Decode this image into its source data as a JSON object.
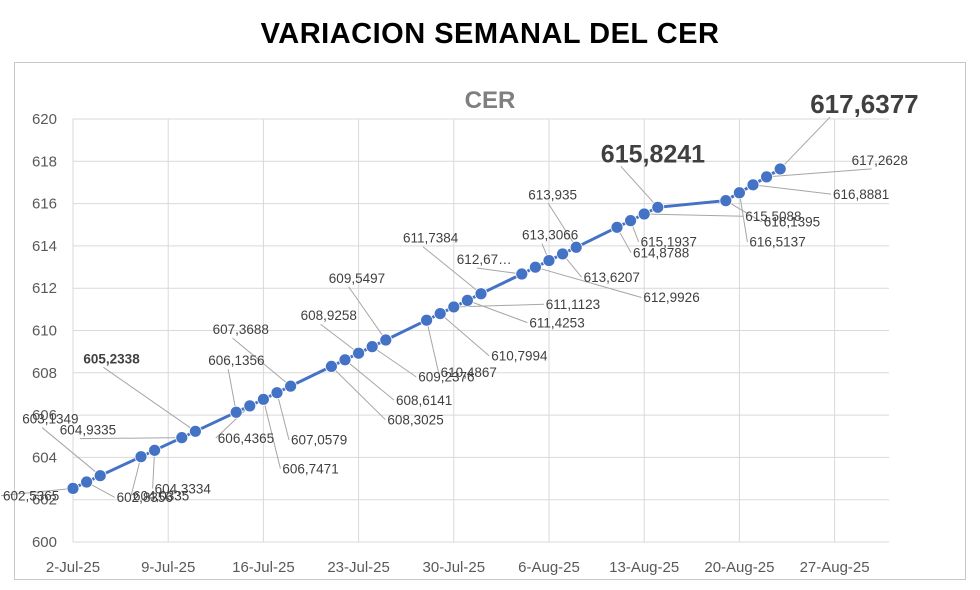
{
  "page": {
    "title": "VARIACION SEMANAL DEL CER"
  },
  "colors": {
    "series": "#4472c4",
    "grid": "#d9d9d9",
    "leader": "#a6a6a6",
    "text": "#404040"
  },
  "chart_data": {
    "type": "line",
    "title": "CER",
    "xlabel": "",
    "ylabel": "",
    "ylim": [
      600,
      620
    ],
    "yticks": [
      600,
      602,
      604,
      606,
      608,
      610,
      612,
      614,
      616,
      618,
      620
    ],
    "ytick_labels": [
      "600",
      "602",
      "604",
      "606",
      "608",
      "610",
      "612",
      "614",
      "616",
      "618",
      "620"
    ],
    "xlim": [
      "2025-07-02",
      "2025-08-31"
    ],
    "xticks": [
      "2025-07-02",
      "2025-07-09",
      "2025-07-16",
      "2025-07-23",
      "2025-07-30",
      "2025-08-06",
      "2025-08-13",
      "2025-08-20",
      "2025-08-27"
    ],
    "xtick_labels": [
      "2-Jul-25",
      "9-Jul-25",
      "16-Jul-25",
      "23-Jul-25",
      "30-Jul-25",
      "6-Aug-25",
      "13-Aug-25",
      "20-Aug-25",
      "27-Aug-25"
    ],
    "grid": true,
    "legend": "none",
    "series": [
      {
        "points": [
          {
            "x": "2025-07-02",
            "y": 602.5365,
            "label": "602,5365"
          },
          {
            "x": "2025-07-03",
            "y": 602.8356,
            "label": "602,8356"
          },
          {
            "x": "2025-07-04",
            "y": 603.1349,
            "label": "603,1349"
          },
          {
            "x": "2025-07-07",
            "y": 604.0335,
            "label": "604,0335"
          },
          {
            "x": "2025-07-08",
            "y": 604.3334,
            "label": "604,3334"
          },
          {
            "x": "2025-07-10",
            "y": 604.9335,
            "label": "604,9335"
          },
          {
            "x": "2025-07-11",
            "y": 605.2338,
            "label": "605,2338"
          },
          {
            "x": "2025-07-14",
            "y": 606.1356,
            "label": "606,1356"
          },
          {
            "x": "2025-07-15",
            "y": 606.4365,
            "label": "606,4365"
          },
          {
            "x": "2025-07-16",
            "y": 606.7471,
            "label": "606,7471"
          },
          {
            "x": "2025-07-17",
            "y": 607.0579,
            "label": "607,0579"
          },
          {
            "x": "2025-07-18",
            "y": 607.3688,
            "label": "607,3688"
          },
          {
            "x": "2025-07-21",
            "y": 608.3025,
            "label": "608,3025"
          },
          {
            "x": "2025-07-22",
            "y": 608.6141,
            "label": "608,6141"
          },
          {
            "x": "2025-07-23",
            "y": 608.9258,
            "label": "608,9258"
          },
          {
            "x": "2025-07-24",
            "y": 609.2376,
            "label": "609,2376"
          },
          {
            "x": "2025-07-25",
            "y": 609.5497,
            "label": "609,5497"
          },
          {
            "x": "2025-07-28",
            "y": 610.4867,
            "label": "610,4867"
          },
          {
            "x": "2025-07-29",
            "y": 610.7994,
            "label": "610,7994"
          },
          {
            "x": "2025-07-30",
            "y": 611.1123,
            "label": "611,1123"
          },
          {
            "x": "2025-07-31",
            "y": 611.4253,
            "label": "611,4253"
          },
          {
            "x": "2025-08-01",
            "y": 611.7384,
            "label": "611,7384"
          },
          {
            "x": "2025-08-04",
            "y": 612.67,
            "label": "612,67…"
          },
          {
            "x": "2025-08-05",
            "y": 612.9926,
            "label": "612,9926"
          },
          {
            "x": "2025-08-06",
            "y": 613.3066,
            "label": "613,3066"
          },
          {
            "x": "2025-08-07",
            "y": 613.6207,
            "label": "613,6207"
          },
          {
            "x": "2025-08-08",
            "y": 613.935,
            "label": "613,935"
          },
          {
            "x": "2025-08-11",
            "y": 614.8788,
            "label": "614,8788"
          },
          {
            "x": "2025-08-12",
            "y": 615.1937,
            "label": "615,1937"
          },
          {
            "x": "2025-08-13",
            "y": 615.5088,
            "label": "615,5088"
          },
          {
            "x": "2025-08-14",
            "y": 615.8241,
            "label": "615,8241"
          },
          {
            "x": "2025-08-19",
            "y": 616.1395,
            "label": "616,1395"
          },
          {
            "x": "2025-08-20",
            "y": 616.5137,
            "label": "616,5137"
          },
          {
            "x": "2025-08-21",
            "y": 616.8881,
            "label": "616,8881"
          },
          {
            "x": "2025-08-22",
            "y": 617.2628,
            "label": "617,2628"
          },
          {
            "x": "2025-08-23",
            "y": 617.6377,
            "label": "617,6377"
          }
        ]
      }
    ]
  }
}
